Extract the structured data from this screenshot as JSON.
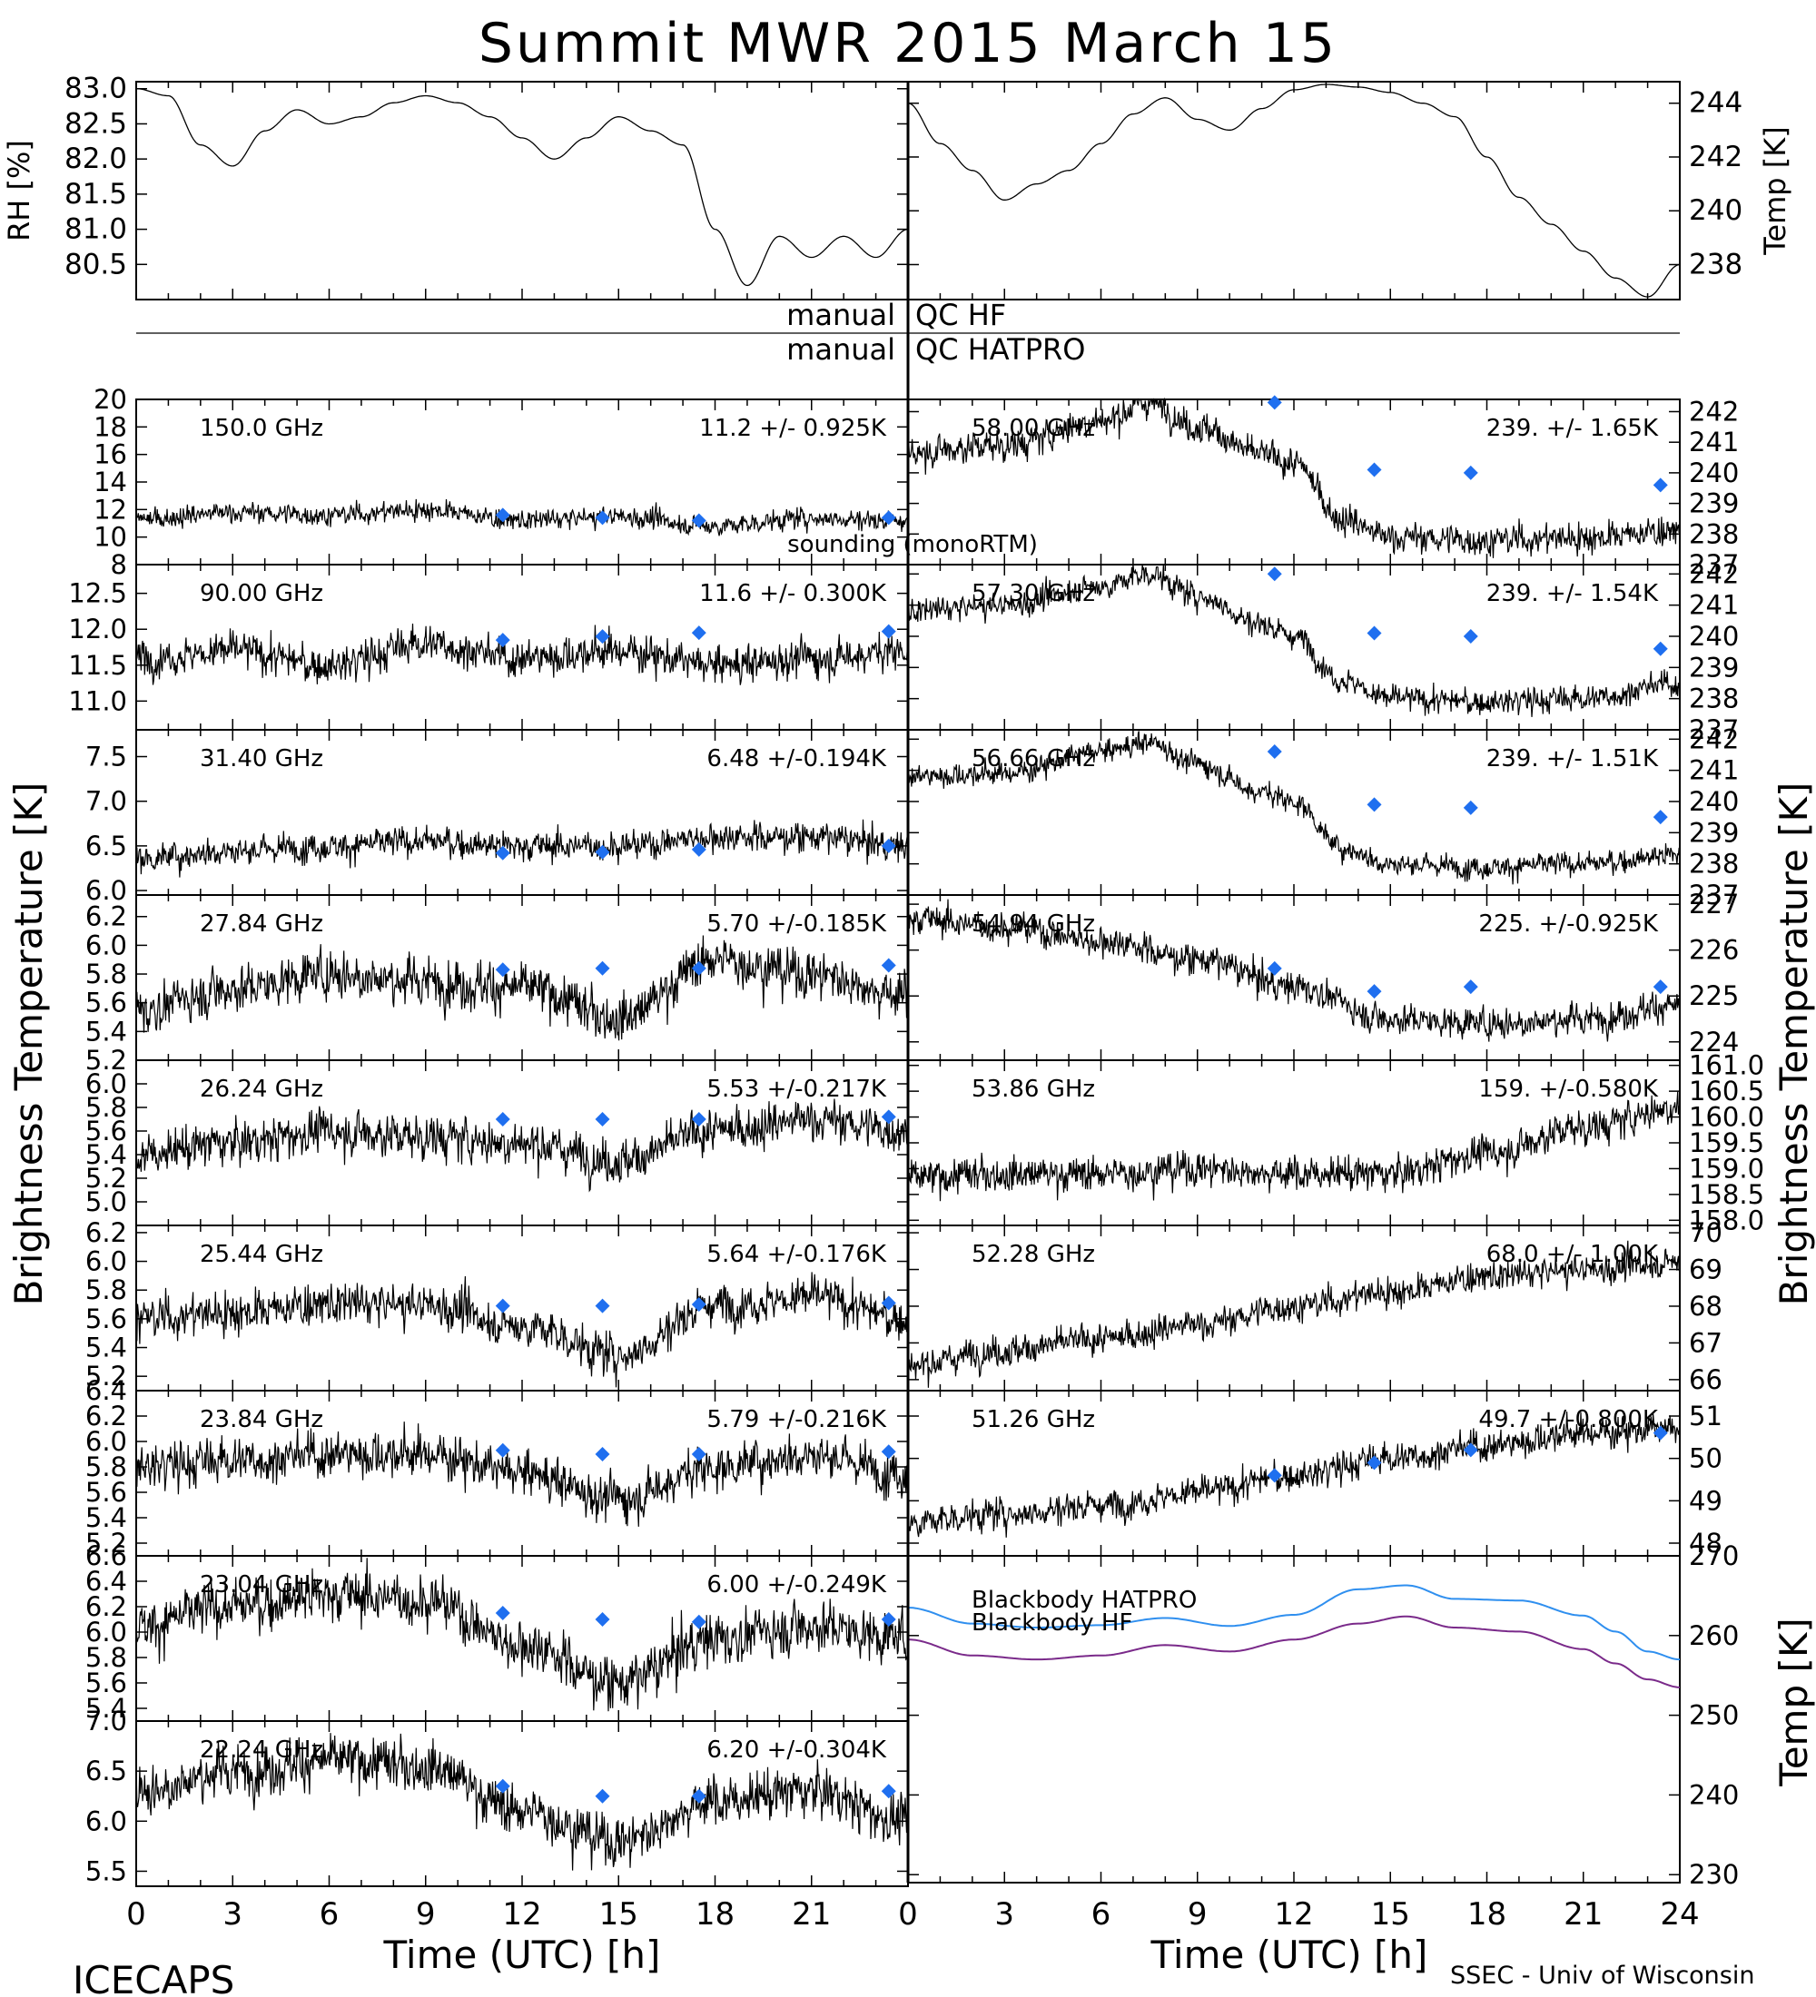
{
  "title": "Summit MWR 2015 March 15",
  "footer": {
    "left": "ICECAPS",
    "right": "SSEC - Univ of Wisconsin"
  },
  "axis_labels": {
    "time": "Time (UTC) [h]",
    "bt_left": "Brightness Temperature [K]",
    "bt_right": "Brightness Temperature [K]",
    "rh": "RH [%]",
    "temp_top": "Temp [K]",
    "temp_bb": "Temp [K]"
  },
  "qc": {
    "hf_left": "manual",
    "hf_right": "QC HF",
    "hatpro_left": "manual",
    "hatpro_right": "QC HATPRO"
  },
  "colors": {
    "trace": "#000000",
    "channel_text": "#ff2a2a",
    "sonde": "#1f6fef",
    "hatpro_bb": "#2f8fef",
    "hf_bb": "#7a2a8a"
  },
  "chart_data": [
    {
      "type": "line",
      "panel": "rh",
      "ylabel": "RH [%]",
      "xlim": [
        0,
        24
      ],
      "ylim": [
        80.0,
        83.1
      ],
      "yticks": [
        80.5,
        81.0,
        81.5,
        82.0,
        82.5,
        83.0
      ],
      "x": [
        0,
        1,
        2,
        3,
        4,
        5,
        6,
        7,
        8,
        9,
        10,
        11,
        12,
        13,
        14,
        15,
        16,
        17,
        18,
        19,
        20,
        21,
        22,
        23,
        24
      ],
      "series": [
        {
          "values": [
            83.0,
            82.9,
            82.2,
            81.9,
            82.4,
            82.7,
            82.5,
            82.6,
            82.8,
            82.9,
            82.8,
            82.6,
            82.3,
            82.0,
            82.3,
            82.6,
            82.4,
            82.2,
            81.0,
            80.2,
            80.9,
            80.6,
            80.9,
            80.6,
            81.0
          ]
        }
      ]
    },
    {
      "type": "line",
      "panel": "temp",
      "ylabel": "Temp [K]",
      "xlim": [
        0,
        24
      ],
      "ylim": [
        236.7,
        244.8
      ],
      "yticks": [
        238,
        240,
        242,
        244
      ],
      "x": [
        0,
        1,
        2,
        3,
        4,
        5,
        6,
        7,
        8,
        9,
        10,
        11,
        12,
        13,
        14,
        15,
        16,
        17,
        18,
        19,
        20,
        21,
        22,
        23,
        24
      ],
      "series": [
        {
          "values": [
            244.0,
            242.5,
            241.5,
            240.4,
            241.0,
            241.5,
            242.5,
            243.6,
            244.2,
            243.4,
            243.0,
            243.8,
            244.5,
            244.7,
            244.6,
            244.4,
            244.0,
            243.5,
            242.0,
            240.5,
            239.5,
            238.5,
            237.5,
            236.8,
            238.0
          ]
        }
      ]
    },
    {
      "type": "line",
      "panel": "bt_left",
      "label": "150.0 GHz",
      "stat": "11.2 +/- 0.925K",
      "xlim": [
        0,
        24
      ],
      "ylim": [
        8,
        20
      ],
      "yticks": [
        8,
        10,
        12,
        14,
        16,
        18,
        20
      ],
      "x": [
        0,
        3,
        6,
        9,
        12,
        15,
        18,
        21,
        24
      ],
      "series": [
        {
          "values": [
            11.3,
            11.8,
            11.6,
            12.0,
            11.2,
            11.5,
            10.8,
            11.4,
            11.2
          ]
        }
      ],
      "sonde_x": [
        11.4,
        14.5,
        17.5,
        23.4
      ],
      "sonde_y": [
        11.6,
        11.4,
        11.2,
        11.4
      ],
      "noise": 0.9,
      "annotation": "sounding (monoRTM)"
    },
    {
      "type": "line",
      "panel": "bt_left",
      "label": "90.00 GHz",
      "stat": "11.6 +/- 0.300K",
      "xlim": [
        0,
        24
      ],
      "ylim": [
        10.6,
        12.9
      ],
      "yticks": [
        11.0,
        11.5,
        12.0,
        12.5
      ],
      "x": [
        0,
        3,
        6,
        9,
        12,
        15,
        18,
        21,
        24
      ],
      "series": [
        {
          "values": [
            11.6,
            11.7,
            11.5,
            11.8,
            11.6,
            11.7,
            11.5,
            11.6,
            11.7
          ]
        }
      ],
      "sonde_x": [
        11.4,
        14.5,
        17.5,
        23.4
      ],
      "sonde_y": [
        11.85,
        11.9,
        11.95,
        11.97
      ],
      "noise": 0.32
    },
    {
      "type": "line",
      "panel": "bt_left",
      "label": "31.40 GHz",
      "stat": "6.48 +/-0.194K",
      "xlim": [
        0,
        24
      ],
      "ylim": [
        5.95,
        7.8
      ],
      "yticks": [
        6.0,
        6.5,
        7.0,
        7.5
      ],
      "x": [
        0,
        3,
        6,
        9,
        12,
        15,
        18,
        21,
        24
      ],
      "series": [
        {
          "values": [
            6.35,
            6.45,
            6.5,
            6.55,
            6.5,
            6.5,
            6.6,
            6.6,
            6.5
          ]
        }
      ],
      "sonde_x": [
        11.4,
        14.5,
        17.5,
        23.4
      ],
      "sonde_y": [
        6.42,
        6.43,
        6.46,
        6.5
      ],
      "noise": 0.2
    },
    {
      "type": "line",
      "panel": "bt_left",
      "label": "27.84 GHz",
      "stat": "5.70 +/-0.185K",
      "xlim": [
        0,
        24
      ],
      "ylim": [
        5.2,
        6.35
      ],
      "yticks": [
        5.2,
        5.4,
        5.6,
        5.8,
        6.0,
        6.2
      ],
      "x": [
        0,
        3,
        6,
        9,
        12,
        15,
        18,
        21,
        24
      ],
      "series": [
        {
          "values": [
            5.55,
            5.7,
            5.8,
            5.75,
            5.7,
            5.5,
            5.9,
            5.8,
            5.65
          ]
        }
      ],
      "sonde_x": [
        11.4,
        14.5,
        17.5,
        23.4
      ],
      "sonde_y": [
        5.83,
        5.84,
        5.84,
        5.86
      ],
      "noise": 0.2
    },
    {
      "type": "line",
      "panel": "bt_left",
      "label": "26.24 GHz",
      "stat": "5.53 +/-0.217K",
      "xlim": [
        0,
        24
      ],
      "ylim": [
        4.8,
        6.2
      ],
      "yticks": [
        5.0,
        5.2,
        5.4,
        5.6,
        5.8,
        6.0
      ],
      "x": [
        0,
        3,
        6,
        9,
        12,
        15,
        18,
        21,
        24
      ],
      "series": [
        {
          "values": [
            5.4,
            5.5,
            5.6,
            5.55,
            5.5,
            5.35,
            5.6,
            5.7,
            5.6
          ]
        }
      ],
      "sonde_x": [
        11.4,
        14.5,
        17.5,
        23.4
      ],
      "sonde_y": [
        5.7,
        5.7,
        5.7,
        5.72
      ],
      "noise": 0.22
    },
    {
      "type": "line",
      "panel": "bt_left",
      "label": "25.44 GHz",
      "stat": "5.64 +/-0.176K",
      "xlim": [
        0,
        24
      ],
      "ylim": [
        5.1,
        6.25
      ],
      "yticks": [
        5.2,
        5.4,
        5.6,
        5.8,
        6.0,
        6.2
      ],
      "x": [
        0,
        3,
        6,
        9,
        12,
        15,
        18,
        21,
        24
      ],
      "series": [
        {
          "values": [
            5.6,
            5.65,
            5.7,
            5.7,
            5.55,
            5.35,
            5.7,
            5.75,
            5.6
          ]
        }
      ],
      "sonde_x": [
        11.4,
        14.5,
        17.5,
        23.4
      ],
      "sonde_y": [
        5.69,
        5.69,
        5.7,
        5.71
      ],
      "noise": 0.18
    },
    {
      "type": "line",
      "panel": "bt_left",
      "label": "23.84 GHz",
      "stat": "5.79 +/-0.216K",
      "xlim": [
        0,
        24
      ],
      "ylim": [
        5.1,
        6.4
      ],
      "yticks": [
        5.2,
        5.4,
        5.6,
        5.8,
        6.0,
        6.2,
        6.4
      ],
      "x": [
        0,
        3,
        6,
        9,
        12,
        15,
        18,
        21,
        24
      ],
      "series": [
        {
          "values": [
            5.8,
            5.85,
            5.9,
            5.9,
            5.75,
            5.55,
            5.8,
            5.9,
            5.75
          ]
        }
      ],
      "sonde_x": [
        11.4,
        14.5,
        17.5,
        23.4
      ],
      "sonde_y": [
        5.93,
        5.9,
        5.9,
        5.92
      ],
      "noise": 0.22
    },
    {
      "type": "line",
      "panel": "bt_left",
      "label": "23.04 GHz",
      "stat": "6.00 +/-0.249K",
      "xlim": [
        0,
        24
      ],
      "ylim": [
        5.3,
        6.6
      ],
      "yticks": [
        5.4,
        5.6,
        5.8,
        6.0,
        6.2,
        6.4,
        6.6
      ],
      "x": [
        0,
        3,
        6,
        9,
        12,
        15,
        18,
        21,
        24
      ],
      "series": [
        {
          "values": [
            6.05,
            6.2,
            6.3,
            6.25,
            5.9,
            5.6,
            5.95,
            6.05,
            5.95
          ]
        }
      ],
      "sonde_x": [
        11.4,
        14.5,
        17.5,
        23.4
      ],
      "sonde_y": [
        6.15,
        6.1,
        6.08,
        6.1
      ],
      "noise": 0.25
    },
    {
      "type": "line",
      "panel": "bt_left",
      "label": "22.24 GHz",
      "stat": "6.20 +/-0.304K",
      "xlim": [
        0,
        24
      ],
      "ylim": [
        5.35,
        7.0
      ],
      "yticks": [
        5.5,
        6.0,
        6.5,
        7.0
      ],
      "x": [
        0,
        3,
        6,
        9,
        12,
        15,
        18,
        21,
        24
      ],
      "series": [
        {
          "values": [
            6.3,
            6.5,
            6.6,
            6.55,
            6.1,
            5.8,
            6.2,
            6.3,
            6.0
          ]
        }
      ],
      "sonde_x": [
        11.4,
        14.5,
        17.5,
        23.4
      ],
      "sonde_y": [
        6.35,
        6.25,
        6.25,
        6.3
      ],
      "noise": 0.3
    },
    {
      "type": "line",
      "panel": "bt_right",
      "label": "58.00 GHz",
      "stat": "239. +/- 1.65K",
      "xlim": [
        0,
        24
      ],
      "ylim": [
        237,
        242.4
      ],
      "yticks": [
        237,
        238,
        239,
        240,
        241,
        242
      ],
      "x": [
        0,
        3,
        6,
        7.5,
        9,
        11,
        12,
        13.5,
        15,
        18,
        21,
        24
      ],
      "series": [
        {
          "values": [
            240.7,
            240.9,
            241.7,
            242.3,
            241.5,
            240.6,
            240.3,
            238.5,
            237.9,
            237.8,
            237.9,
            238.1
          ]
        }
      ],
      "sonde_x": [
        11.4,
        14.5,
        17.5,
        23.4
      ],
      "sonde_y": [
        242.3,
        240.1,
        240.0,
        239.6
      ],
      "noise": 0.6
    },
    {
      "type": "line",
      "panel": "bt_right",
      "label": "57.30 GHz",
      "stat": "239. +/- 1.54K",
      "xlim": [
        0,
        24
      ],
      "ylim": [
        237,
        242.3
      ],
      "yticks": [
        237,
        238,
        239,
        240,
        241,
        242
      ],
      "x": [
        0,
        3,
        6,
        7.5,
        9,
        11,
        12,
        13.5,
        15,
        18,
        21,
        24
      ],
      "series": [
        {
          "values": [
            240.8,
            241.0,
            241.6,
            242.0,
            241.3,
            240.4,
            240.0,
            238.6,
            238.0,
            237.9,
            238.0,
            238.5
          ]
        }
      ],
      "sonde_x": [
        11.4,
        14.5,
        17.5,
        23.4
      ],
      "sonde_y": [
        242.0,
        240.1,
        240.0,
        239.6
      ],
      "noise": 0.5
    },
    {
      "type": "line",
      "panel": "bt_right",
      "label": "56.66 GHz",
      "stat": "239. +/- 1.51K",
      "xlim": [
        0,
        24
      ],
      "ylim": [
        237,
        242.3
      ],
      "yticks": [
        237,
        238,
        239,
        240,
        241,
        242
      ],
      "x": [
        0,
        3,
        6,
        7.5,
        9,
        11,
        12,
        13.5,
        15,
        18,
        21,
        24
      ],
      "series": [
        {
          "values": [
            240.8,
            240.9,
            241.6,
            241.9,
            241.2,
            240.3,
            240.0,
            238.5,
            238.0,
            237.9,
            238.0,
            238.3
          ]
        }
      ],
      "sonde_x": [
        11.4,
        14.5,
        17.5,
        23.4
      ],
      "sonde_y": [
        241.6,
        239.9,
        239.8,
        239.5
      ],
      "noise": 0.45
    },
    {
      "type": "line",
      "panel": "bt_right",
      "label": "54.94 GHz",
      "stat": "225. +/-0.925K",
      "xlim": [
        0,
        24
      ],
      "ylim": [
        223.6,
        227.2
      ],
      "yticks": [
        224,
        225,
        226,
        227
      ],
      "x": [
        0,
        3,
        6,
        9,
        12,
        15,
        18,
        21,
        24
      ],
      "series": [
        {
          "values": [
            226.7,
            226.5,
            226.2,
            225.8,
            225.2,
            224.5,
            224.4,
            224.5,
            224.8
          ]
        }
      ],
      "sonde_x": [
        11.4,
        14.5,
        17.5,
        23.4
      ],
      "sonde_y": [
        225.6,
        225.1,
        225.2,
        225.2
      ],
      "noise": 0.4
    },
    {
      "type": "line",
      "panel": "bt_right",
      "label": "53.86 GHz",
      "stat": "159. +/-0.580K",
      "xlim": [
        0,
        24
      ],
      "ylim": [
        157.9,
        161.1
      ],
      "yticks": [
        158.0,
        158.5,
        159.0,
        159.5,
        160.0,
        160.5,
        161.0
      ],
      "x": [
        0,
        3,
        6,
        9,
        12,
        15,
        18,
        21,
        24
      ],
      "series": [
        {
          "values": [
            158.8,
            158.9,
            158.9,
            159.0,
            158.9,
            158.9,
            159.3,
            159.8,
            160.2
          ]
        }
      ],
      "sonde_x": [],
      "sonde_y": [],
      "noise": 0.4
    },
    {
      "type": "line",
      "panel": "bt_right",
      "label": "52.28 GHz",
      "stat": "68.0 +/- 1.00K",
      "xlim": [
        0,
        24
      ],
      "ylim": [
        65.7,
        70.2
      ],
      "yticks": [
        66,
        67,
        68,
        69,
        70
      ],
      "x": [
        0,
        3,
        6,
        9,
        12,
        15,
        18,
        21,
        24
      ],
      "series": [
        {
          "values": [
            66.4,
            66.8,
            67.1,
            67.5,
            68.0,
            68.4,
            68.8,
            69.0,
            69.2
          ]
        }
      ],
      "sonde_x": [],
      "sonde_y": [],
      "noise": 0.5
    },
    {
      "type": "line",
      "panel": "bt_right",
      "label": "51.26 GHz",
      "stat": "49.7 +/-0.800K",
      "xlim": [
        0,
        24
      ],
      "ylim": [
        47.7,
        51.6
      ],
      "yticks": [
        48,
        49,
        50,
        51
      ],
      "x": [
        0,
        3,
        6,
        9,
        12,
        15,
        18,
        21,
        24
      ],
      "series": [
        {
          "values": [
            48.5,
            48.7,
            48.9,
            49.2,
            49.6,
            50.0,
            50.3,
            50.6,
            50.7
          ]
        }
      ],
      "sonde_x": [
        11.4,
        14.5,
        17.5,
        23.4
      ],
      "sonde_y": [
        49.6,
        49.9,
        50.2,
        50.6
      ],
      "noise": 0.45
    },
    {
      "type": "line",
      "panel": "blackbody",
      "ylabel": "Temp [K]",
      "xlim": [
        0,
        24
      ],
      "ylim": [
        229,
        270
      ],
      "yticks": [
        230,
        240,
        250,
        260,
        270
      ],
      "x": [
        0,
        2,
        4,
        6,
        8,
        10,
        12,
        14,
        15.5,
        17,
        19,
        21,
        22,
        23,
        24
      ],
      "series": [
        {
          "name": "Blackbody HATPRO",
          "values": [
            263.5,
            261.5,
            261.0,
            261.3,
            262.2,
            261.2,
            262.6,
            265.8,
            266.3,
            264.6,
            264.4,
            262.5,
            260.5,
            258.0,
            257.0
          ]
        },
        {
          "name": "Blackbody HF",
          "values": [
            259.5,
            257.5,
            257.0,
            257.5,
            258.8,
            258.0,
            259.5,
            261.5,
            262.4,
            261.0,
            260.5,
            258.3,
            256.5,
            254.5,
            253.5
          ]
        }
      ]
    }
  ]
}
